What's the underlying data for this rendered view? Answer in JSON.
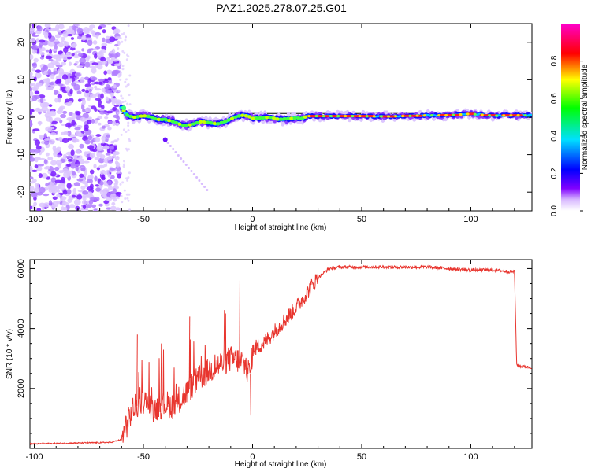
{
  "title": "PAZ1.2025.278.07.25.G01",
  "chart_data": [
    {
      "type": "heatmap",
      "xlabel": "Height of straight line (km)",
      "ylabel": "Frequency (Hz)",
      "xlim": [
        -102,
        128
      ],
      "ylim": [
        -25,
        25
      ],
      "xticks": [
        -100,
        -50,
        0,
        50,
        100
      ],
      "yticks": [
        -20,
        -10,
        0,
        10,
        20
      ],
      "noise_region_x": [
        -102,
        -61
      ],
      "signal_onset_x": -61,
      "frequency_trace": {
        "x": [
          -60,
          -57,
          -54,
          -50,
          -47,
          -44,
          -40,
          -36,
          -32,
          -28,
          -24,
          -20,
          -16,
          -12,
          -8,
          -5,
          -2,
          0,
          4,
          8,
          12,
          16,
          20,
          23,
          25,
          30,
          40,
          50,
          60,
          70,
          80,
          90,
          100,
          110,
          120,
          128
        ],
        "y": [
          2.5,
          0.3,
          0.0,
          0.4,
          0.2,
          -0.6,
          -0.6,
          -1.2,
          -2.2,
          -2.0,
          -1.2,
          -1.4,
          -1.8,
          -1.0,
          0.0,
          0.5,
          0.3,
          -0.3,
          -0.2,
          0.0,
          -0.6,
          -0.4,
          -0.2,
          -0.3,
          0.3,
          0.3,
          0.3,
          0.3,
          0.2,
          0.3,
          0.5,
          0.5,
          0.9,
          0.4,
          0.5,
          0.5
        ]
      },
      "model_line_y": 1.0,
      "alias_trace": {
        "x": [
          -40,
          -30,
          -20
        ],
        "y": [
          -6,
          -13,
          -20
        ]
      },
      "colorbar": {
        "label": "Normalized spectral amplitude",
        "range": [
          0,
          1
        ],
        "ticks": [
          "0.0",
          "0.2",
          "0.4",
          "0.6",
          "0.8"
        ]
      }
    },
    {
      "type": "line",
      "xlabel": "Height of straight line (km)",
      "ylabel": "SNR (10 * v/v)",
      "xlim": [
        -102,
        128
      ],
      "ylim": [
        0,
        6300
      ],
      "xticks": [
        -100,
        -50,
        0,
        50,
        100
      ],
      "yticks": [
        2000,
        4000,
        6000
      ],
      "series": [
        {
          "name": "SNR",
          "color": "#e8352e",
          "x": [
            -102,
            -80,
            -65,
            -60,
            -55,
            -50,
            -45,
            -40,
            -35,
            -30,
            -25,
            -20,
            -15,
            -10,
            -5,
            -1,
            0,
            5,
            10,
            15,
            20,
            25,
            30,
            35,
            40,
            50,
            60,
            70,
            80,
            90,
            100,
            110,
            118,
            120,
            121,
            122,
            128
          ],
          "values": [
            150,
            180,
            200,
            300,
            1300,
            1600,
            1300,
            1500,
            1400,
            1900,
            2300,
            2600,
            2800,
            3000,
            2900,
            2500,
            3300,
            3500,
            3900,
            4300,
            4700,
            5200,
            5700,
            6000,
            6050,
            6050,
            6050,
            6050,
            6050,
            6000,
            5950,
            5950,
            5900,
            5900,
            2800,
            2750,
            2700
          ]
        }
      ]
    }
  ]
}
